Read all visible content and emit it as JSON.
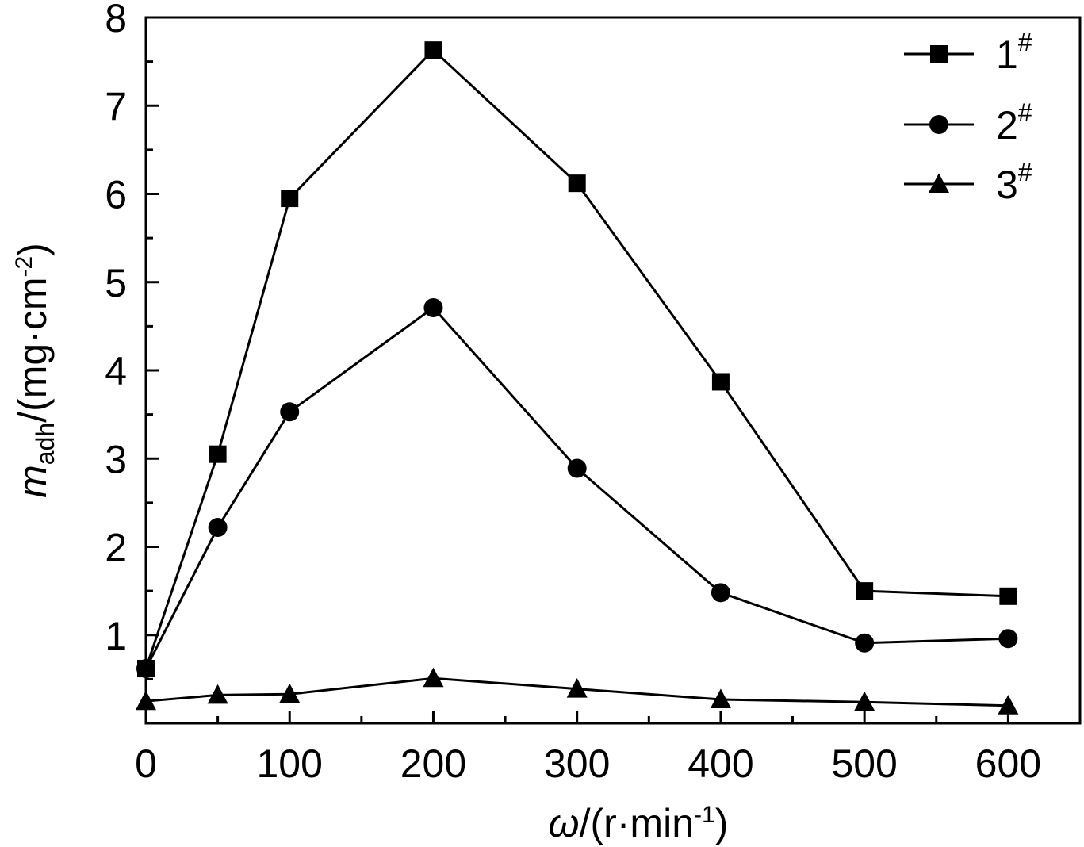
{
  "chart_data": {
    "type": "line",
    "x": [
      0,
      50,
      100,
      200,
      300,
      400,
      500,
      600
    ],
    "series": [
      {
        "name": "1",
        "sup": "#",
        "marker": "square",
        "values": [
          0.62,
          3.05,
          5.95,
          7.63,
          6.12,
          3.87,
          1.5,
          1.44
        ]
      },
      {
        "name": "2",
        "sup": "#",
        "marker": "circle",
        "values": [
          0.62,
          2.22,
          3.53,
          4.71,
          2.89,
          1.48,
          0.91,
          0.96
        ]
      },
      {
        "name": "3",
        "sup": "#",
        "marker": "triangle",
        "values": [
          0.25,
          0.32,
          0.33,
          0.51,
          0.39,
          0.27,
          0.24,
          0.2
        ]
      }
    ],
    "xlim": [
      0,
      650
    ],
    "ylim": [
      0,
      8
    ],
    "xticks": [
      0,
      100,
      200,
      300,
      400,
      500,
      600
    ],
    "yticks": [
      1,
      2,
      3,
      4,
      5,
      6,
      7,
      8
    ],
    "xlabel": {
      "symbol": "ω",
      "unit_prefix": "/(r·min",
      "unit_sup": "-1",
      "unit_suffix": ")"
    },
    "ylabel": {
      "symbol": "m",
      "sub": "adh",
      "unit_prefix": "/(mg·cm",
      "unit_sup": "-2",
      "unit_suffix": ")"
    },
    "legend_position": "top-right",
    "color": "#000000"
  }
}
